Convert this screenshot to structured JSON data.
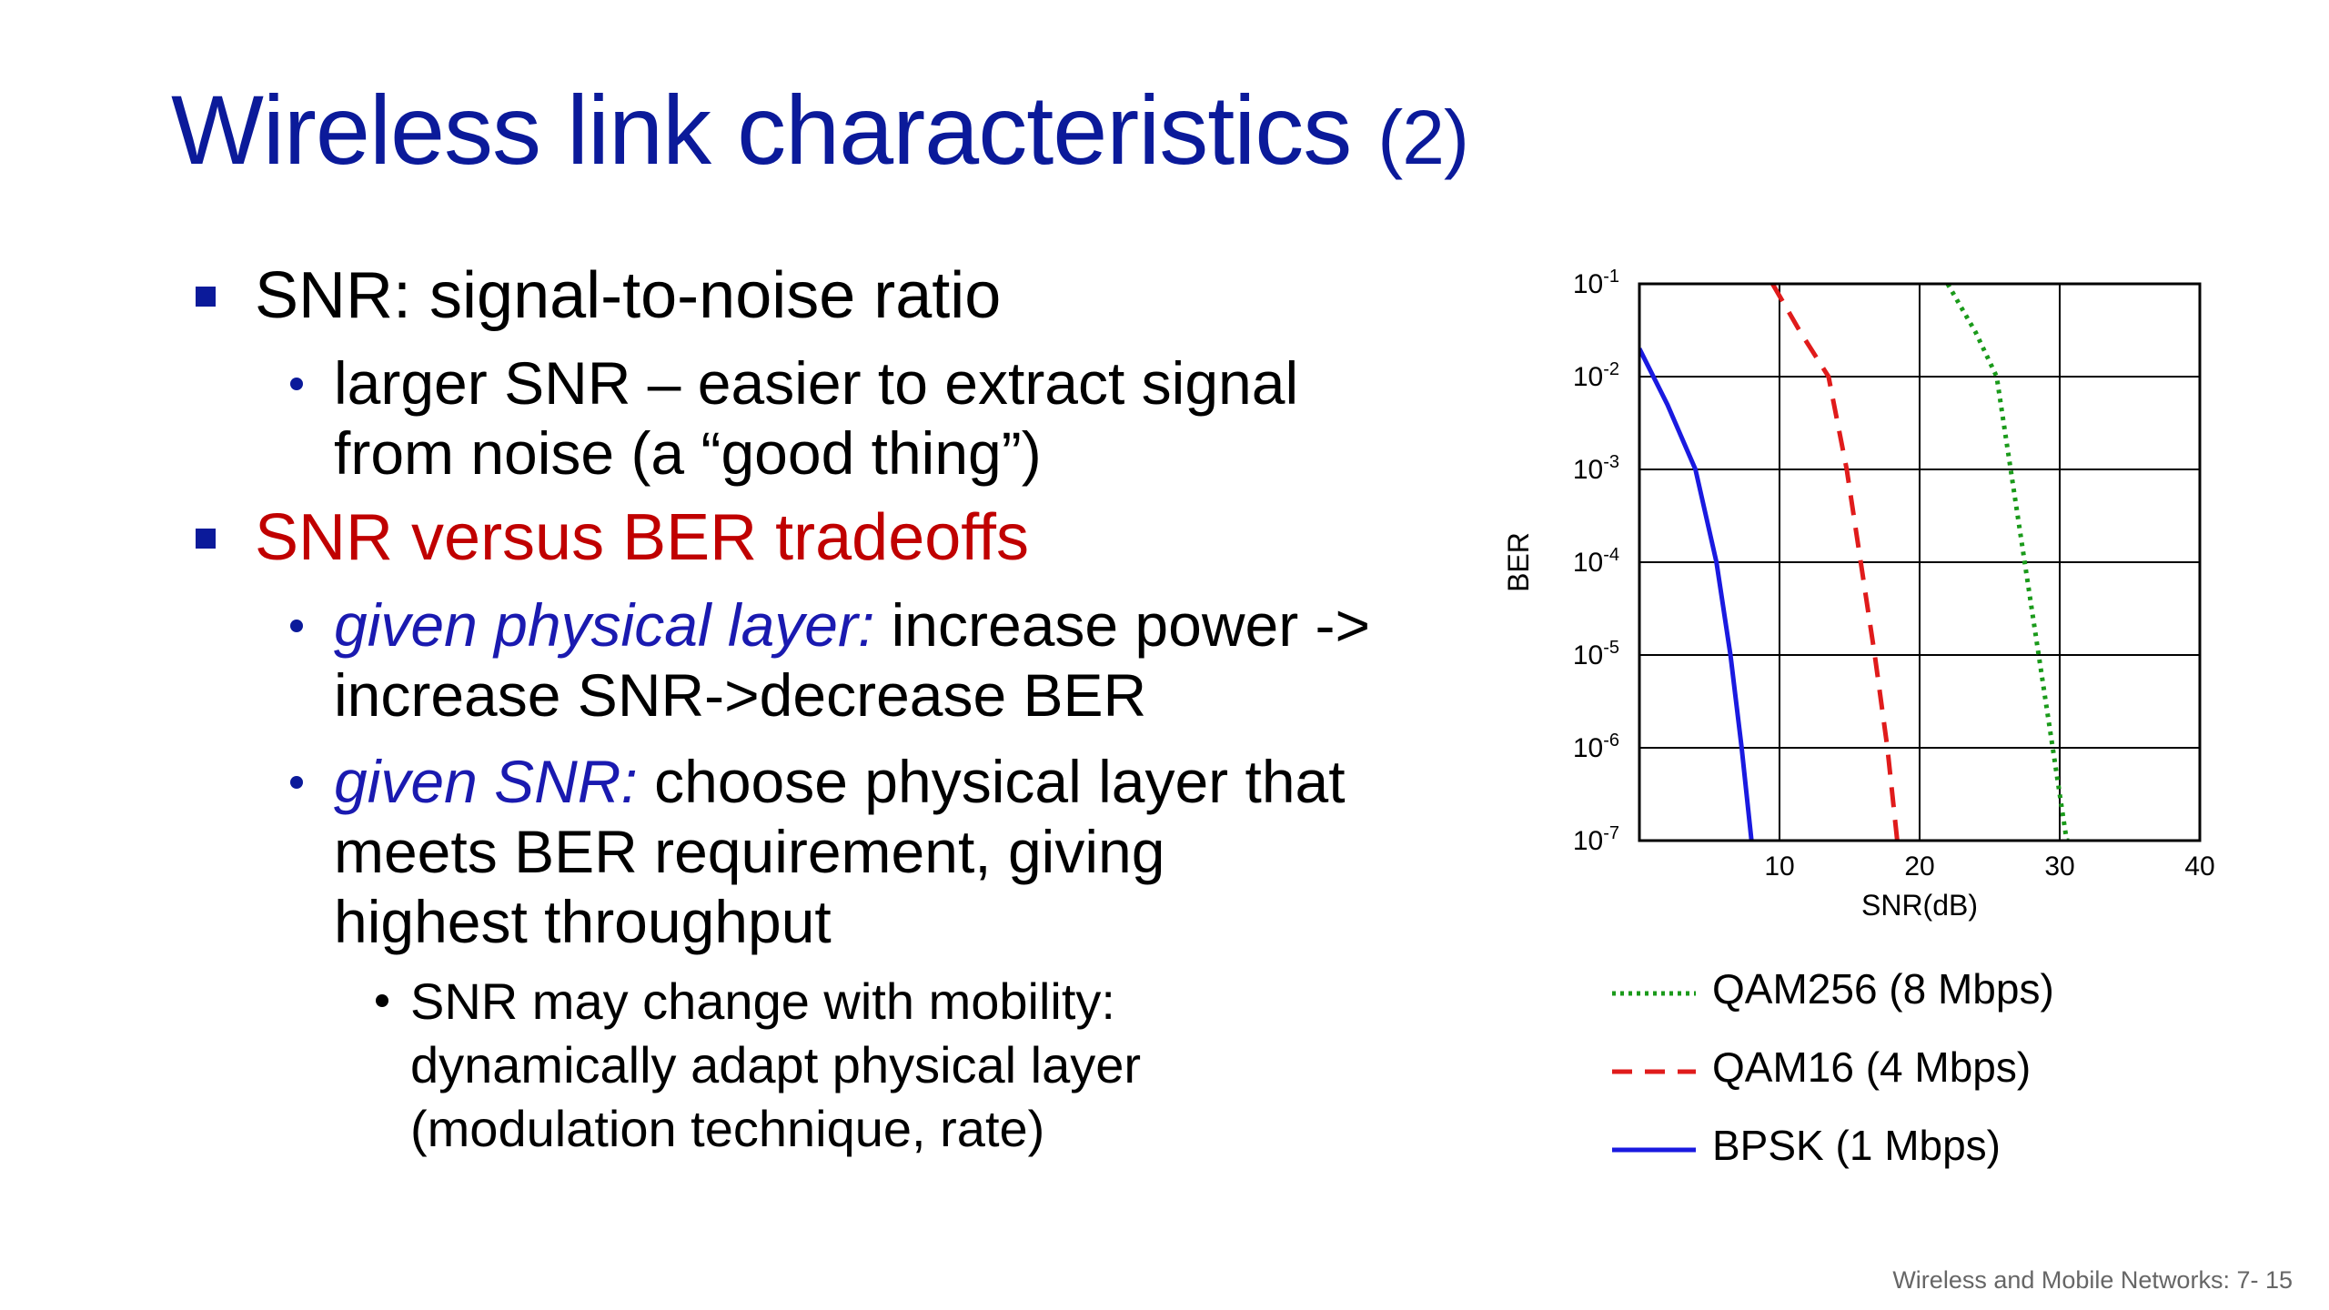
{
  "slide": {
    "title_main": "Wireless link characteristics",
    "title_num": "(2)",
    "bullet1": "SNR: signal-to-noise ratio",
    "bullet1_sub1_line1": "larger SNR – easier to extract signal",
    "bullet1_sub1_line2": "from noise (a “good thing”)",
    "bullet2": "SNR versus BER tradeoffs",
    "bullet2_sub1_em": "given physical layer:",
    "bullet2_sub1_rest": " increase power ->",
    "bullet2_sub1_line2": "increase SNR->decrease BER",
    "bullet2_sub2_em": "given SNR:",
    "bullet2_sub2_rest": " choose physical layer that",
    "bullet2_sub2_line2": "meets BER requirement, giving",
    "bullet2_sub2_line3": "highest throughput",
    "bullet2_sub2_sub_line1": "SNR may change with mobility:",
    "bullet2_sub2_sub_line2": "dynamically adapt physical layer",
    "bullet2_sub2_sub_line3": "(modulation technique, rate)",
    "footer": "Wireless and Mobile Networks: 7- 15"
  },
  "colors": {
    "title": "#0b1a9a",
    "highlight_red": "#c00000",
    "qam256": "#1a9a1a",
    "qam16": "#e01b1b",
    "bpsk": "#1a1ae0"
  },
  "chart_data": {
    "type": "line",
    "xlabel": "SNR(dB)",
    "ylabel": "BER",
    "x_ticks": [
      "10",
      "20",
      "30",
      "40"
    ],
    "xlim": [
      0,
      40
    ],
    "y_scale": "log",
    "ylim": [
      1e-07,
      0.1
    ],
    "y_tick_base": "10",
    "y_tick_exponents": [
      "-1",
      "-2",
      "-3",
      "-4",
      "-5",
      "-6",
      "-7"
    ],
    "grid": true,
    "legend_position": "bottom",
    "series": [
      {
        "name": "QAM256 (8 Mbps)",
        "style": "dotted",
        "color": "#1a9a1a",
        "x": [
          22,
          24,
          25.5,
          26.5,
          27.5,
          28.5,
          29.5,
          30.5,
          31
        ],
        "y": [
          0.1,
          0.03,
          0.01,
          0.001,
          0.0001,
          1e-05,
          1e-06,
          1e-07,
          1e-07
        ]
      },
      {
        "name": "QAM16 (4 Mbps)",
        "style": "dashed",
        "color": "#e01b1b",
        "x": [
          9.5,
          11.5,
          13.5,
          14.8,
          15.8,
          16.8,
          17.7,
          18.4
        ],
        "y": [
          0.1,
          0.03,
          0.01,
          0.001,
          0.0001,
          1e-05,
          1e-06,
          1e-07
        ]
      },
      {
        "name": "BPSK (1 Mbps)",
        "style": "solid",
        "color": "#1a1ae0",
        "x": [
          0,
          2,
          4,
          5.5,
          6.5,
          7.3,
          8,
          8.8
        ],
        "y": [
          0.02,
          0.005,
          0.001,
          0.0001,
          1e-05,
          1e-06,
          1e-07,
          1e-08
        ]
      }
    ]
  }
}
